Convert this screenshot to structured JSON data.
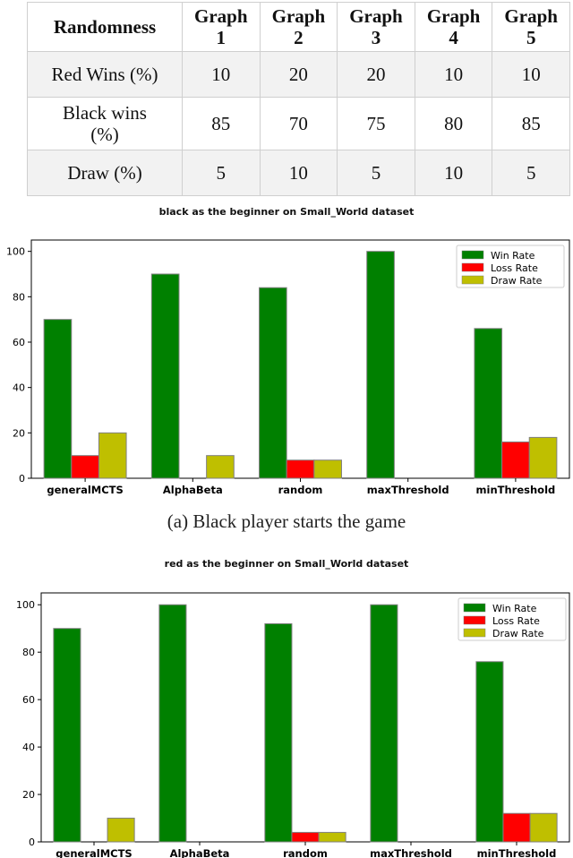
{
  "table": {
    "headers": [
      "Randomness",
      "Graph\n1",
      "Graph\n2",
      "Graph\n3",
      "Graph\n4",
      "Graph\n5"
    ],
    "rows": [
      [
        "Red Wins (%)",
        "10",
        "20",
        "20",
        "10",
        "10"
      ],
      [
        "Black wins\n(%)",
        "85",
        "70",
        "75",
        "80",
        "85"
      ],
      [
        "Draw (%)",
        "5",
        "10",
        "5",
        "10",
        "5"
      ]
    ]
  },
  "captions": {
    "a": "(a) Black player starts the game"
  },
  "colors": {
    "win": "#008000",
    "loss": "#ff0000",
    "draw": "#bfbf00",
    "edge": "#808080"
  },
  "chart_data": [
    {
      "type": "bar",
      "title": "black as the beginner on Small_World dataset",
      "xlabel": "",
      "ylabel": "",
      "categories": [
        "generalMCTS",
        "AlphaBeta",
        "random",
        "maxThreshold",
        "minThreshold"
      ],
      "series": [
        {
          "name": "Win Rate",
          "values": [
            70,
            90,
            84,
            100,
            66
          ]
        },
        {
          "name": "Loss Rate",
          "values": [
            10,
            0,
            8,
            0,
            16
          ]
        },
        {
          "name": "Draw Rate",
          "values": [
            20,
            10,
            8,
            0,
            18
          ]
        }
      ],
      "ylim": [
        0,
        105
      ],
      "yticks": [
        0,
        20,
        40,
        60,
        80,
        100
      ],
      "legend": "top-right",
      "grid": false
    },
    {
      "type": "bar",
      "title": "red as the beginner on Small_World dataset",
      "xlabel": "",
      "ylabel": "",
      "categories": [
        "generalMCTS",
        "AlphaBeta",
        "random",
        "maxThreshold",
        "minThreshold"
      ],
      "series": [
        {
          "name": "Win Rate",
          "values": [
            90,
            100,
            92,
            100,
            76
          ]
        },
        {
          "name": "Loss Rate",
          "values": [
            0,
            0,
            4,
            0,
            12
          ]
        },
        {
          "name": "Draw Rate",
          "values": [
            10,
            0,
            4,
            0,
            12
          ]
        }
      ],
      "ylim": [
        0,
        105
      ],
      "yticks": [
        0,
        20,
        40,
        60,
        80,
        100
      ],
      "legend": "top-right",
      "grid": false
    }
  ]
}
